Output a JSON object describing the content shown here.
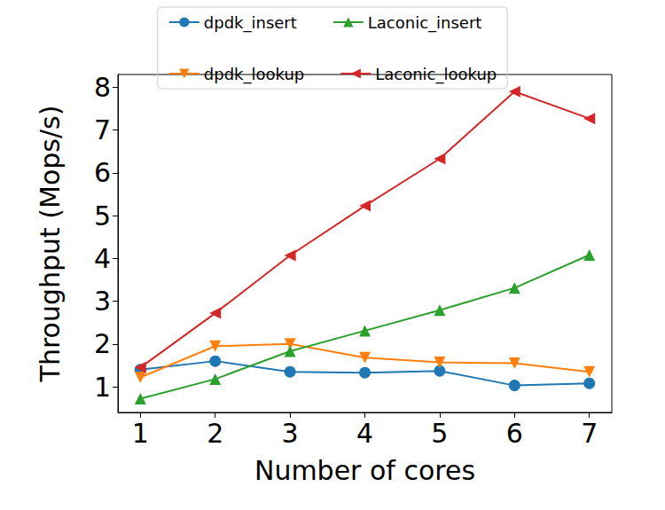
{
  "chart_data": {
    "type": "line",
    "x_label": "Number of cores",
    "y_label": "Throughput (Mops/s)",
    "x": [
      1,
      2,
      3,
      4,
      5,
      6,
      7
    ],
    "xlim": [
      0.7,
      7.3
    ],
    "xticks": [
      1,
      2,
      3,
      4,
      5,
      6,
      7
    ],
    "ylim": [
      0.4,
      8.3
    ],
    "yticks": [
      1,
      2,
      3,
      4,
      5,
      6,
      7,
      8
    ],
    "grid": false,
    "legend": "top",
    "series": [
      {
        "name": "dpdk_insert",
        "color": "#1f77b4",
        "marker": "circle",
        "values": [
          1.4,
          1.6,
          1.35,
          1.33,
          1.37,
          1.03,
          1.08
        ]
      },
      {
        "name": "dpdk_lookup",
        "color": "#ff7f0e",
        "marker": "triangle_down",
        "values": [
          1.22,
          1.95,
          2.0,
          1.68,
          1.57,
          1.55,
          1.35
        ]
      },
      {
        "name": "Laconic_insert",
        "color": "#2ca02c",
        "marker": "triangle_up",
        "values": [
          0.72,
          1.18,
          1.83,
          2.31,
          2.79,
          3.31,
          4.08
        ]
      },
      {
        "name": "Laconic_lookup",
        "color": "#d62728",
        "marker": "triangle_left",
        "values": [
          1.45,
          2.72,
          4.07,
          5.23,
          6.33,
          7.9,
          7.27
        ]
      }
    ]
  }
}
